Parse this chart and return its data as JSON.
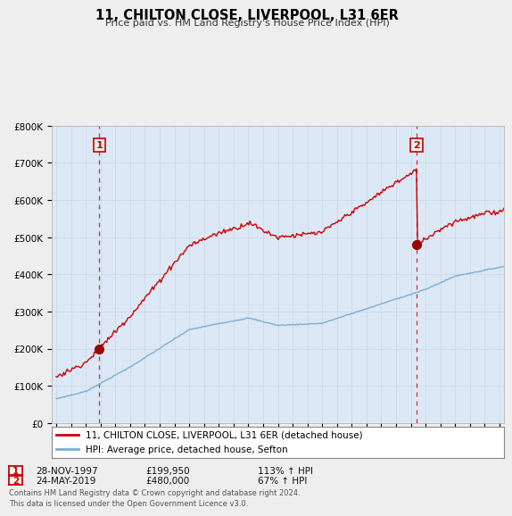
{
  "title": "11, CHILTON CLOSE, LIVERPOOL, L31 6ER",
  "subtitle": "Price paid vs. HM Land Registry's House Price Index (HPI)",
  "ylim": [
    0,
    800000
  ],
  "yticks": [
    0,
    100000,
    200000,
    300000,
    400000,
    500000,
    600000,
    700000,
    800000
  ],
  "ytick_labels": [
    "£0",
    "£100K",
    "£200K",
    "£300K",
    "£400K",
    "£500K",
    "£600K",
    "£700K",
    "£800K"
  ],
  "sale1_date": 1997.91,
  "sale1_price": 199950,
  "sale2_date": 2019.39,
  "sale2_price": 480000,
  "line1_color": "#cc0000",
  "line2_color": "#7bafd4",
  "vline_color": "#cc0000",
  "marker_color": "#990000",
  "legend1": "11, CHILTON CLOSE, LIVERPOOL, L31 6ER (detached house)",
  "legend2": "HPI: Average price, detached house, Sefton",
  "table_row1": [
    "1",
    "28-NOV-1997",
    "£199,950",
    "113% ↑ HPI"
  ],
  "table_row2": [
    "2",
    "24-MAY-2019",
    "£480,000",
    "67% ↑ HPI"
  ],
  "footer": "Contains HM Land Registry data © Crown copyright and database right 2024.\nThis data is licensed under the Open Government Licence v3.0.",
  "bg_color": "#eeeeee",
  "plot_bg_color": "#dce8f5"
}
